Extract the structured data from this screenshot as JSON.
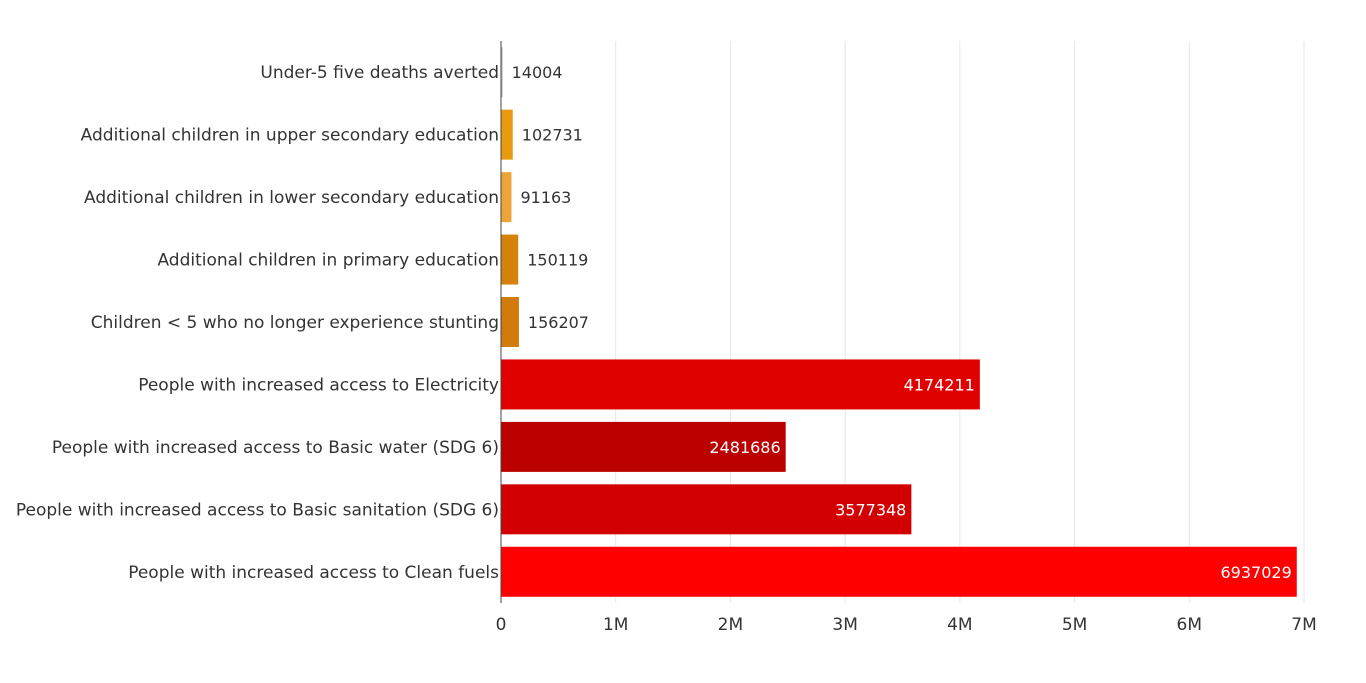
{
  "chart_data": {
    "type": "bar",
    "orientation": "horizontal",
    "title": "",
    "xlabel": "",
    "ylabel": "",
    "xlim": [
      0,
      7000000
    ],
    "xticks": [
      0,
      1000000,
      2000000,
      3000000,
      4000000,
      5000000,
      6000000,
      7000000
    ],
    "xtick_labels": [
      "0",
      "1M",
      "2M",
      "3M",
      "4M",
      "5M",
      "6M",
      "7M"
    ],
    "grid": "vertical",
    "legend": "none",
    "categories": [
      "Under-5 five deaths averted",
      "Additional children in upper secondary education",
      "Additional children in lower secondary education",
      "Additional children in primary education",
      "Children < 5 who no longer experience stunting",
      "People with increased access to Electricity",
      "People with increased access to Basic water (SDG 6)",
      "People with increased access to Basic sanitation (SDG 6)",
      "People with increased access to Clean fuels"
    ],
    "values": [
      14004,
      102731,
      91163,
      150119,
      156207,
      4174211,
      2481686,
      3577348,
      6937029
    ],
    "data_labels": [
      "14004",
      "102731",
      "91163",
      "150119",
      "156207",
      "4174211",
      "2481686",
      "3577348",
      "6937029"
    ],
    "colors": [
      "#bdbdbd",
      "#e89a10",
      "#eba33a",
      "#d4820c",
      "#d17b0c",
      "#e00000",
      "#bb0000",
      "#d20000",
      "#ff0000"
    ]
  }
}
